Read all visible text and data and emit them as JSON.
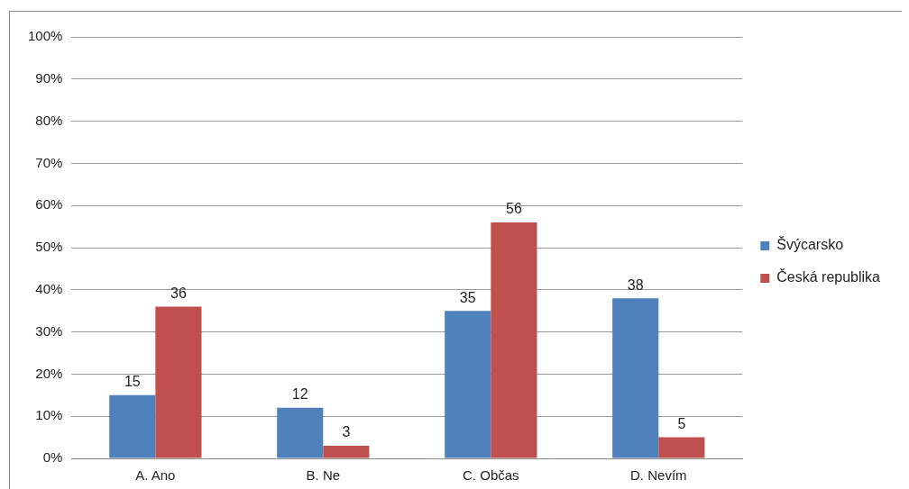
{
  "chart_data": {
    "type": "bar",
    "categories": [
      "A. Ano",
      "B. Ne",
      "C. Občas",
      "D. Nevím"
    ],
    "series": [
      {
        "name": "Švýcarsko",
        "color": "#4f81bd",
        "values": [
          15,
          12,
          35,
          38
        ]
      },
      {
        "name": "Česká republika",
        "color": "#c0504d",
        "values": [
          36,
          3,
          56,
          5
        ]
      }
    ],
    "ylim": [
      0,
      100
    ],
    "yticks": [
      {
        "value": 0,
        "label": "0%"
      },
      {
        "value": 10,
        "label": "10%"
      },
      {
        "value": 20,
        "label": "20%"
      },
      {
        "value": 30,
        "label": "30%"
      },
      {
        "value": 40,
        "label": "40%"
      },
      {
        "value": 50,
        "label": "50%"
      },
      {
        "value": 60,
        "label": "60%"
      },
      {
        "value": 70,
        "label": "70%"
      },
      {
        "value": 80,
        "label": "80%"
      },
      {
        "value": 90,
        "label": "90%"
      },
      {
        "value": 100,
        "label": "100%"
      }
    ],
    "grid": "y",
    "legend": "right",
    "data_labels": true
  }
}
